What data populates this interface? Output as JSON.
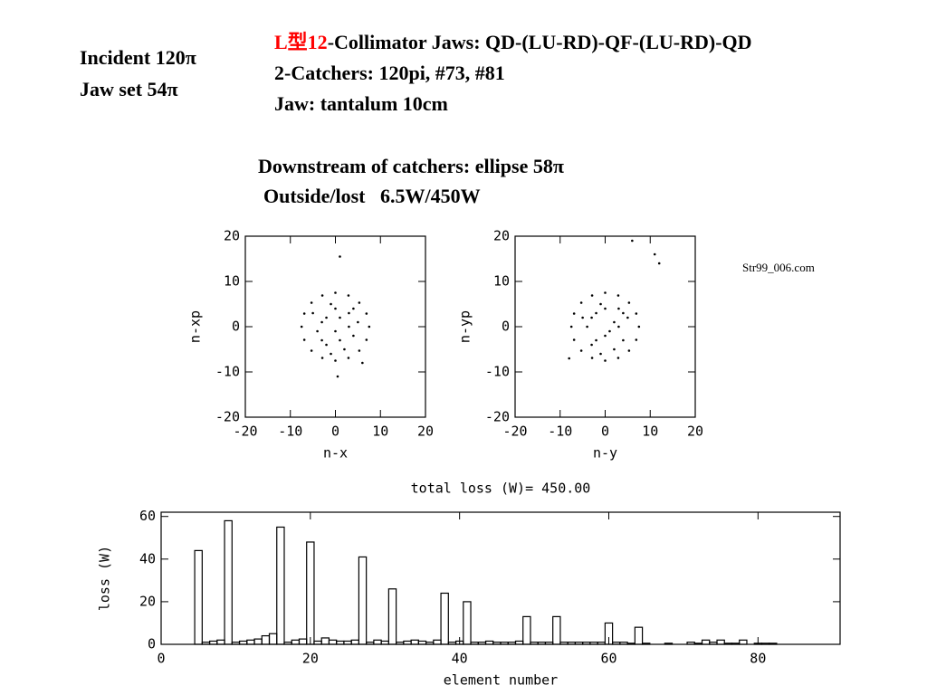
{
  "slide": {
    "incident": "Incident 120π",
    "jaw_set": "Jaw set 54π",
    "title_red": "L型12",
    "title_rest": "-Collimator Jaws: QD-(LU-RD)-QF-(LU-RD)-QD",
    "line2": "2-Catchers: 120pi, #73, #81",
    "line3": "Jaw: tantalum 10cm",
    "downstream": "Downstream of catchers: ellipse 58π",
    "outside": "Outside/lost   6.5W/450W",
    "source": "Str99_006.com"
  },
  "chart_data": [
    {
      "type": "scatter",
      "xlabel": "n-x",
      "ylabel": "n-xp",
      "color": "#000000",
      "xlim": [
        -20,
        20
      ],
      "ylim": [
        -20,
        20
      ],
      "xticks": [
        -20,
        -10,
        0,
        10,
        20
      ],
      "yticks": [
        -20,
        -10,
        0,
        10,
        20
      ],
      "x": [
        7.5,
        -7.5,
        0,
        0,
        5.3,
        -5.3,
        5.3,
        -5.3,
        6.9,
        -6.9,
        6.9,
        -6.9,
        2.9,
        -2.9,
        2.9,
        -2.9,
        1,
        -3,
        4,
        -2,
        3,
        -4,
        0,
        2,
        -1,
        5,
        -5,
        1,
        -2,
        3,
        0,
        -3,
        4,
        -1,
        1,
        0.5,
        6
      ],
      "values": [
        0,
        0,
        7.5,
        -7.5,
        5.3,
        5.3,
        -5.3,
        -5.3,
        2.9,
        2.9,
        -2.9,
        -2.9,
        6.9,
        6.9,
        -6.9,
        -6.9,
        2,
        1,
        -2,
        -4,
        3,
        -1,
        -1,
        -5,
        5,
        1,
        3,
        -3,
        2,
        0,
        4,
        -3,
        4,
        -6,
        15.5,
        -11,
        -8
      ]
    },
    {
      "type": "scatter",
      "xlabel": "n-y",
      "ylabel": "n-yp",
      "color": "#000000",
      "xlim": [
        -20,
        20
      ],
      "ylim": [
        -20,
        20
      ],
      "xticks": [
        -20,
        -10,
        0,
        10,
        20
      ],
      "yticks": [
        -20,
        -10,
        0,
        10,
        20
      ],
      "x": [
        7.5,
        -7.5,
        0,
        0,
        5.3,
        -5.3,
        5.3,
        -5.3,
        6.9,
        -6.9,
        6.9,
        -6.9,
        2.9,
        -2.9,
        2.9,
        -2.9,
        2,
        -3,
        4,
        -2,
        3,
        -4,
        1,
        2,
        -1,
        5,
        -5,
        0,
        -2,
        3,
        0,
        -3,
        4,
        -1,
        6,
        11,
        12,
        -8
      ],
      "values": [
        0,
        0,
        7.5,
        -7.5,
        5.3,
        5.3,
        -5.3,
        -5.3,
        2.9,
        2.9,
        -2.9,
        -2.9,
        6.9,
        6.9,
        -6.9,
        -6.9,
        1,
        2,
        -3,
        -3,
        4,
        0,
        -1,
        -5,
        5,
        2,
        2,
        -2,
        3,
        0,
        4,
        -4,
        3,
        -6,
        19,
        16,
        14,
        -7
      ]
    },
    {
      "type": "step",
      "title": "total loss (W)= 450.00",
      "xlabel": "element number",
      "ylabel": "loss (W)",
      "color": "#000000",
      "xlim": [
        0,
        91
      ],
      "ylim": [
        0,
        62
      ],
      "xticks": [
        0,
        20,
        40,
        60,
        80
      ],
      "yticks": [
        0,
        20,
        40,
        60
      ],
      "x": [
        1,
        2,
        3,
        4,
        5,
        6,
        7,
        8,
        9,
        10,
        11,
        12,
        13,
        14,
        15,
        16,
        17,
        18,
        19,
        20,
        21,
        22,
        23,
        24,
        25,
        26,
        27,
        28,
        29,
        30,
        31,
        32,
        33,
        34,
        35,
        36,
        37,
        38,
        39,
        40,
        41,
        42,
        43,
        44,
        45,
        46,
        47,
        48,
        49,
        50,
        51,
        52,
        53,
        54,
        55,
        56,
        57,
        58,
        59,
        60,
        61,
        62,
        63,
        64,
        65,
        66,
        67,
        68,
        69,
        70,
        71,
        72,
        73,
        74,
        75,
        76,
        77,
        78,
        79,
        80,
        81,
        82,
        83,
        84,
        85,
        86,
        87,
        88,
        89,
        90
      ],
      "values": [
        0,
        0,
        0,
        0,
        44,
        1,
        1.5,
        2,
        58,
        1,
        1.5,
        2,
        2.5,
        4,
        5,
        55,
        1,
        2,
        2.5,
        48,
        1.5,
        3,
        2,
        1.5,
        1.5,
        2,
        41,
        1,
        2,
        1.5,
        26,
        1,
        1.5,
        2,
        1.5,
        1,
        2,
        24,
        1,
        1.5,
        20,
        1,
        1,
        1.5,
        1,
        1,
        1,
        1.5,
        13,
        1,
        1,
        1,
        13,
        1,
        1,
        1,
        1,
        1,
        1,
        10,
        1,
        1,
        0.5,
        8,
        0.5,
        0,
        0,
        0.5,
        0,
        0,
        1,
        0.5,
        2,
        1,
        2,
        0.5,
        0.5,
        2,
        0,
        0.5,
        0.5,
        0.5,
        0,
        0,
        0,
        0,
        0,
        0,
        0,
        0
      ]
    }
  ]
}
